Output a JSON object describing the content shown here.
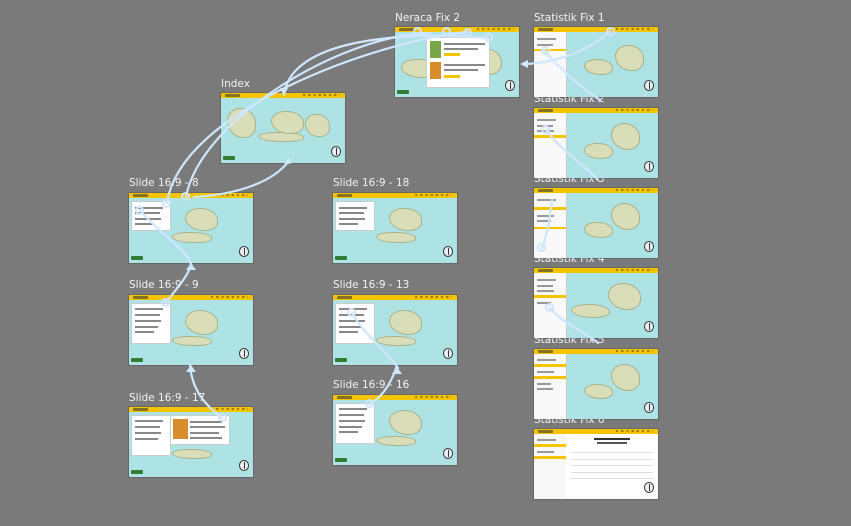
{
  "canvas": {
    "background": "#7a7a7a",
    "connector_color": "#cfe6ff"
  },
  "frames": [
    {
      "id": "neraca-fix-2",
      "label": "Neraca Fix 2"
    },
    {
      "id": "statistik-fix-1",
      "label": "Statistik Fix 1"
    },
    {
      "id": "index",
      "label": "Index"
    },
    {
      "id": "statistik-fix-2",
      "label": "Statistik Fix 2"
    },
    {
      "id": "slide-169-8",
      "label": "Slide 16:9 - 8"
    },
    {
      "id": "slide-169-18",
      "label": "Slide 16:9 - 18"
    },
    {
      "id": "statistik-fix-3",
      "label": "Statistik Fix 3"
    },
    {
      "id": "slide-169-9",
      "label": "Slide 16:9 - 9"
    },
    {
      "id": "slide-169-13",
      "label": "Slide 16:9 - 13"
    },
    {
      "id": "statistik-fix-4",
      "label": "Statistik Fix 4"
    },
    {
      "id": "statistik-fix-5",
      "label": "Statistik Fix 5"
    },
    {
      "id": "slide-169-16",
      "label": "Slide 16:9 - 16"
    },
    {
      "id": "slide-169-17",
      "label": "Slide 16:9 - 17"
    },
    {
      "id": "statistik-fix-6",
      "label": "Statistik Fix 6"
    }
  ]
}
